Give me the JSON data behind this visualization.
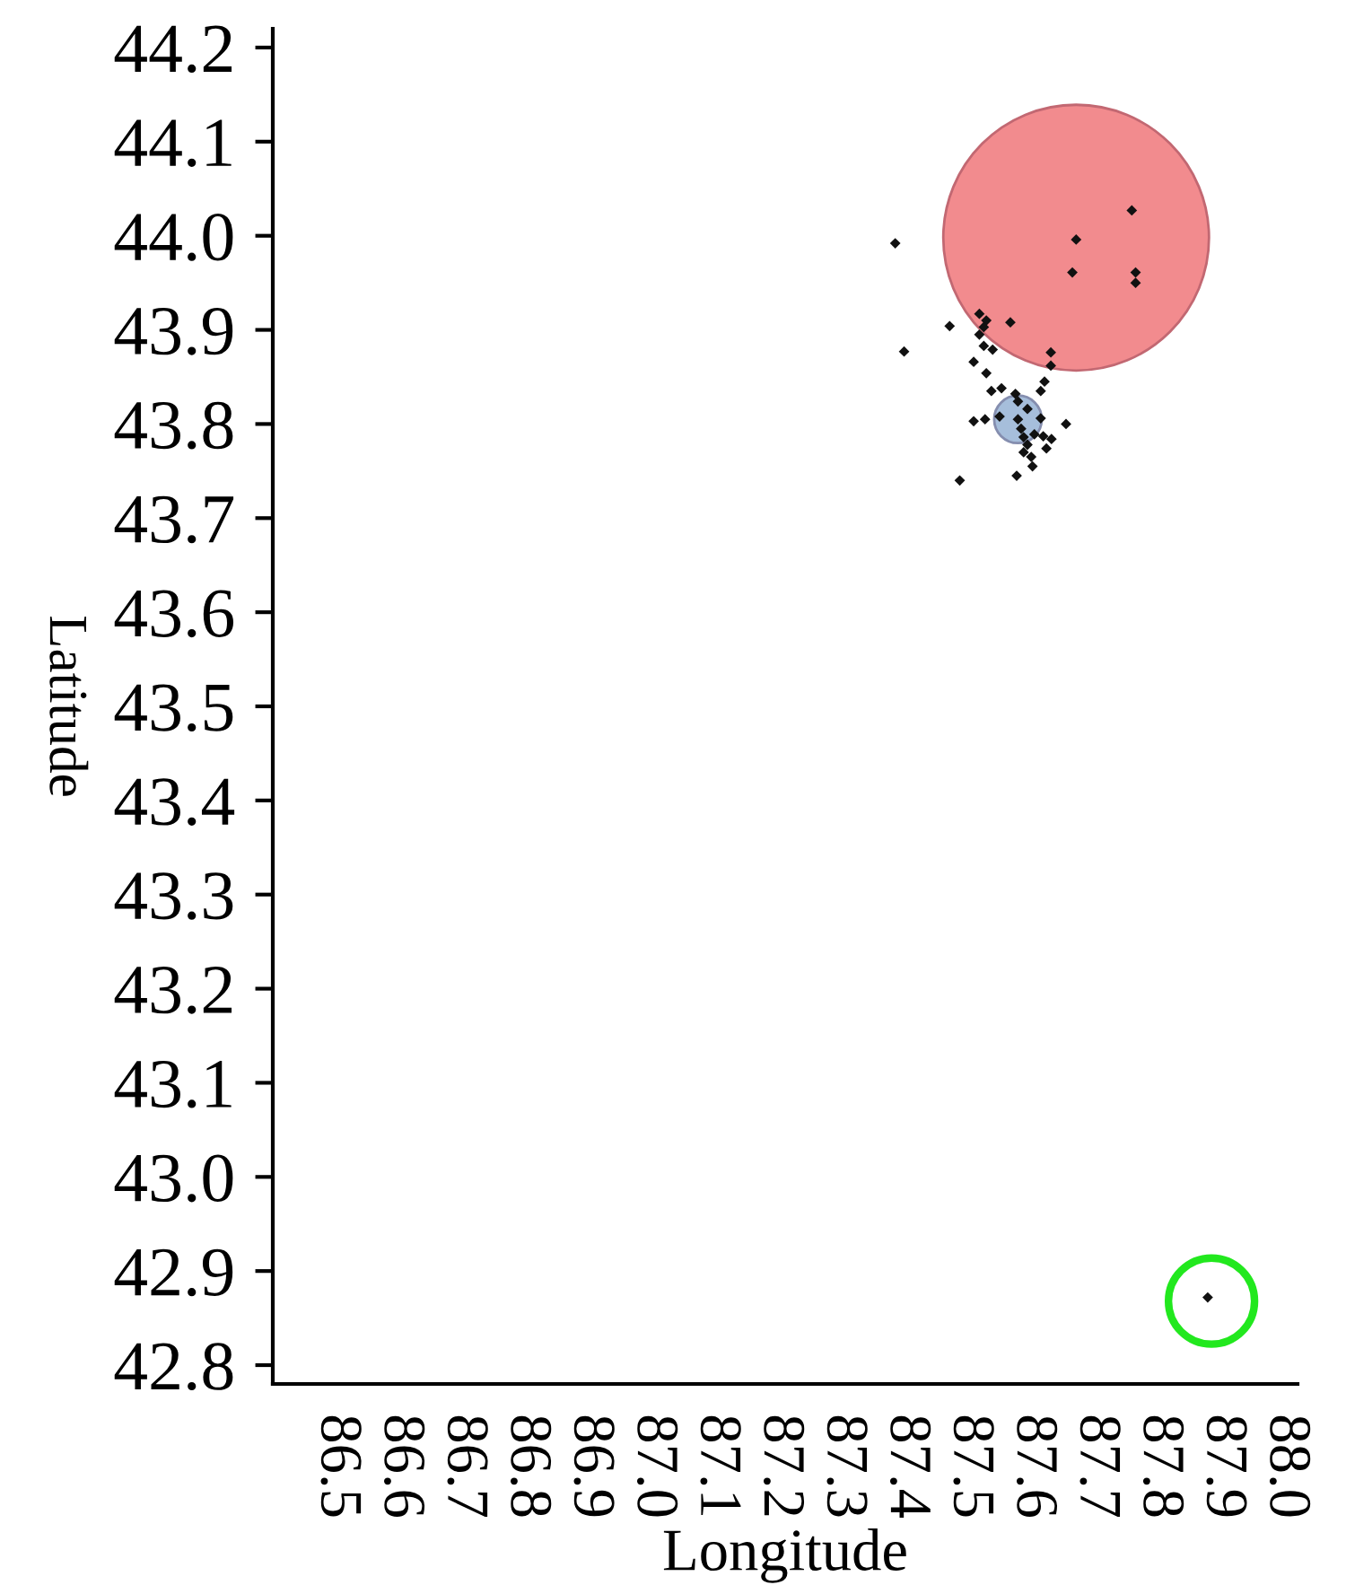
{
  "chart_data": {
    "type": "scatter",
    "xlabel": "Longitude",
    "ylabel": "Latitude",
    "xlim": [
      86.4,
      88.02
    ],
    "ylim": [
      42.78,
      44.22
    ],
    "xticks": [
      86.5,
      86.6,
      86.7,
      86.8,
      86.9,
      {
        "value": 87,
        "label": "87.0"
      },
      87.1,
      87.2,
      87.3,
      87.4,
      87.5,
      87.6,
      87.7,
      87.8,
      87.9,
      {
        "value": 88,
        "label": "88.0"
      }
    ],
    "yticks": [
      42.8,
      42.9,
      {
        "value": 43,
        "label": "43.0"
      },
      43.1,
      43.2,
      43.3,
      43.4,
      43.5,
      43.6,
      43.7,
      43.8,
      43.9,
      {
        "value": 44,
        "label": "44.0"
      },
      44.1,
      44.2
    ],
    "grid": false,
    "legend": false,
    "series": [
      {
        "type": "bubble",
        "x": [
          87.67,
          87.578
        ],
        "values": [
          43.998,
          43.805
        ],
        "sizes": [
          1,
          0.032
        ],
        "colors": [
          "#f28b8e",
          "#a6bedb"
        ]
      },
      {
        "type": "bubble",
        "x": [
          87.884
        ],
        "values": [
          42.868
        ],
        "sizes": [
          0.105
        ],
        "color": "#22e81e",
        "line_style": "solid"
      },
      {
        "marker": "diamond",
        "color": "#111111",
        "x": [
          87.758,
          87.67,
          87.664,
          87.764,
          87.764,
          87.384,
          87.398,
          87.47,
          87.517,
          87.528,
          87.524,
          87.517,
          87.566,
          87.524,
          87.538,
          87.508,
          87.63,
          87.63,
          87.528,
          87.62,
          87.536,
          87.552,
          87.614,
          87.574,
          87.578,
          87.593,
          87.549,
          87.508,
          87.526,
          87.614,
          87.578,
          87.654,
          87.583,
          87.587,
          87.604,
          87.618,
          87.631,
          87.593,
          87.623,
          87.587,
          87.599,
          87.601,
          87.576,
          87.486,
          87.878
        ],
        "values": [
          44.027,
          43.996,
          43.961,
          43.961,
          43.95,
          43.992,
          43.877,
          43.904,
          43.917,
          43.91,
          43.903,
          43.895,
          43.908,
          43.883,
          43.879,
          43.866,
          43.876,
          43.862,
          43.854,
          43.845,
          43.835,
          43.838,
          43.835,
          43.832,
          43.824,
          43.816,
          43.808,
          43.803,
          43.805,
          43.806,
          43.805,
          43.8,
          43.795,
          43.786,
          43.789,
          43.787,
          43.784,
          43.778,
          43.774,
          43.77,
          43.765,
          43.755,
          43.745,
          43.74,
          42.872
        ]
      }
    ]
  }
}
